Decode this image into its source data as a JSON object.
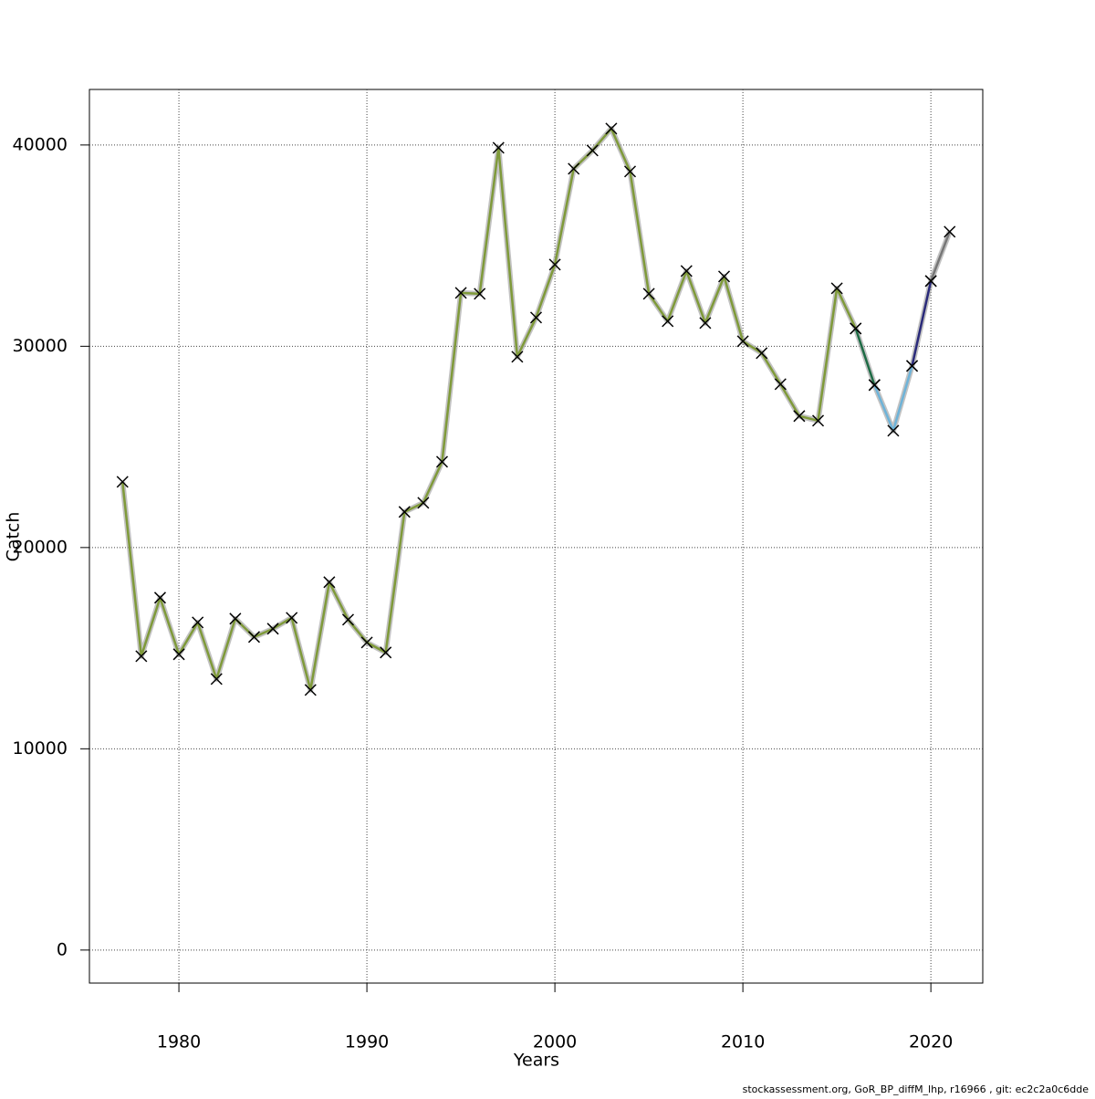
{
  "chart_data": {
    "type": "line",
    "xlabel": "Years",
    "ylabel": "Catch",
    "footer": "stockassessment.org, GoR_BP_diffM_lhp, r16966 , git: ec2c2a0c6dde",
    "x": [
      1977,
      1978,
      1979,
      1980,
      1981,
      1982,
      1983,
      1984,
      1985,
      1986,
      1987,
      1988,
      1989,
      1990,
      1991,
      1992,
      1993,
      1994,
      1995,
      1996,
      1997,
      1998,
      1999,
      2000,
      2001,
      2002,
      2003,
      2004,
      2005,
      2006,
      2007,
      2008,
      2009,
      2010,
      2011,
      2012,
      2013,
      2014,
      2015,
      2016,
      2017,
      2018,
      2019,
      2020,
      2021
    ],
    "series": [
      {
        "color": "#7f9a3a",
        "values": [
          23265,
          14603,
          17506,
          14694,
          16281,
          13469,
          16463,
          15556,
          15964,
          16508,
          12925,
          18277,
          16417,
          15283,
          14785,
          21769,
          22222,
          24263,
          32653,
          32608,
          39864,
          29478,
          31429,
          34059,
          38821,
          39728,
          40816,
          38685,
          32608,
          31247,
          33741,
          31156,
          33469,
          30249,
          29660,
          28118,
          26531,
          26304,
          32880,
          30884,
          null,
          null,
          null,
          null,
          null
        ]
      },
      {
        "color": "#1e6b45",
        "values": [
          null,
          null,
          null,
          null,
          null,
          null,
          null,
          null,
          null,
          null,
          null,
          null,
          null,
          null,
          null,
          null,
          null,
          null,
          null,
          null,
          null,
          null,
          null,
          null,
          null,
          null,
          null,
          null,
          null,
          null,
          null,
          null,
          null,
          null,
          null,
          null,
          null,
          null,
          null,
          30884,
          28073,
          null,
          null,
          null,
          null
        ]
      },
      {
        "color": "#6eb3d8",
        "values": [
          null,
          null,
          null,
          null,
          null,
          null,
          null,
          null,
          null,
          null,
          null,
          null,
          null,
          null,
          null,
          null,
          null,
          null,
          null,
          null,
          null,
          null,
          null,
          null,
          null,
          null,
          null,
          null,
          null,
          null,
          null,
          null,
          null,
          null,
          null,
          null,
          null,
          null,
          null,
          null,
          28073,
          25805,
          29025,
          null,
          null
        ]
      },
      {
        "color": "#2a2a7a",
        "values": [
          null,
          null,
          null,
          null,
          null,
          null,
          null,
          null,
          null,
          null,
          null,
          null,
          null,
          null,
          null,
          null,
          null,
          null,
          null,
          null,
          null,
          null,
          null,
          null,
          null,
          null,
          null,
          null,
          null,
          null,
          null,
          null,
          null,
          null,
          null,
          null,
          null,
          null,
          null,
          null,
          null,
          null,
          29025,
          33243,
          null
        ]
      },
      {
        "color": "#777777",
        "values": [
          null,
          null,
          null,
          null,
          null,
          null,
          null,
          null,
          null,
          null,
          null,
          null,
          null,
          null,
          null,
          null,
          null,
          null,
          null,
          null,
          null,
          null,
          null,
          null,
          null,
          null,
          null,
          null,
          null,
          null,
          null,
          null,
          null,
          null,
          null,
          null,
          null,
          null,
          null,
          null,
          null,
          null,
          null,
          33243,
          35692
        ]
      }
    ],
    "xlim": [
      1975.24,
      2022.76
    ],
    "ylim": [
      -1640,
      42760
    ],
    "xticks": [
      1980,
      1990,
      2000,
      2010,
      2020
    ],
    "yticks": [
      0,
      10000,
      20000,
      30000,
      40000
    ],
    "grid": true
  }
}
